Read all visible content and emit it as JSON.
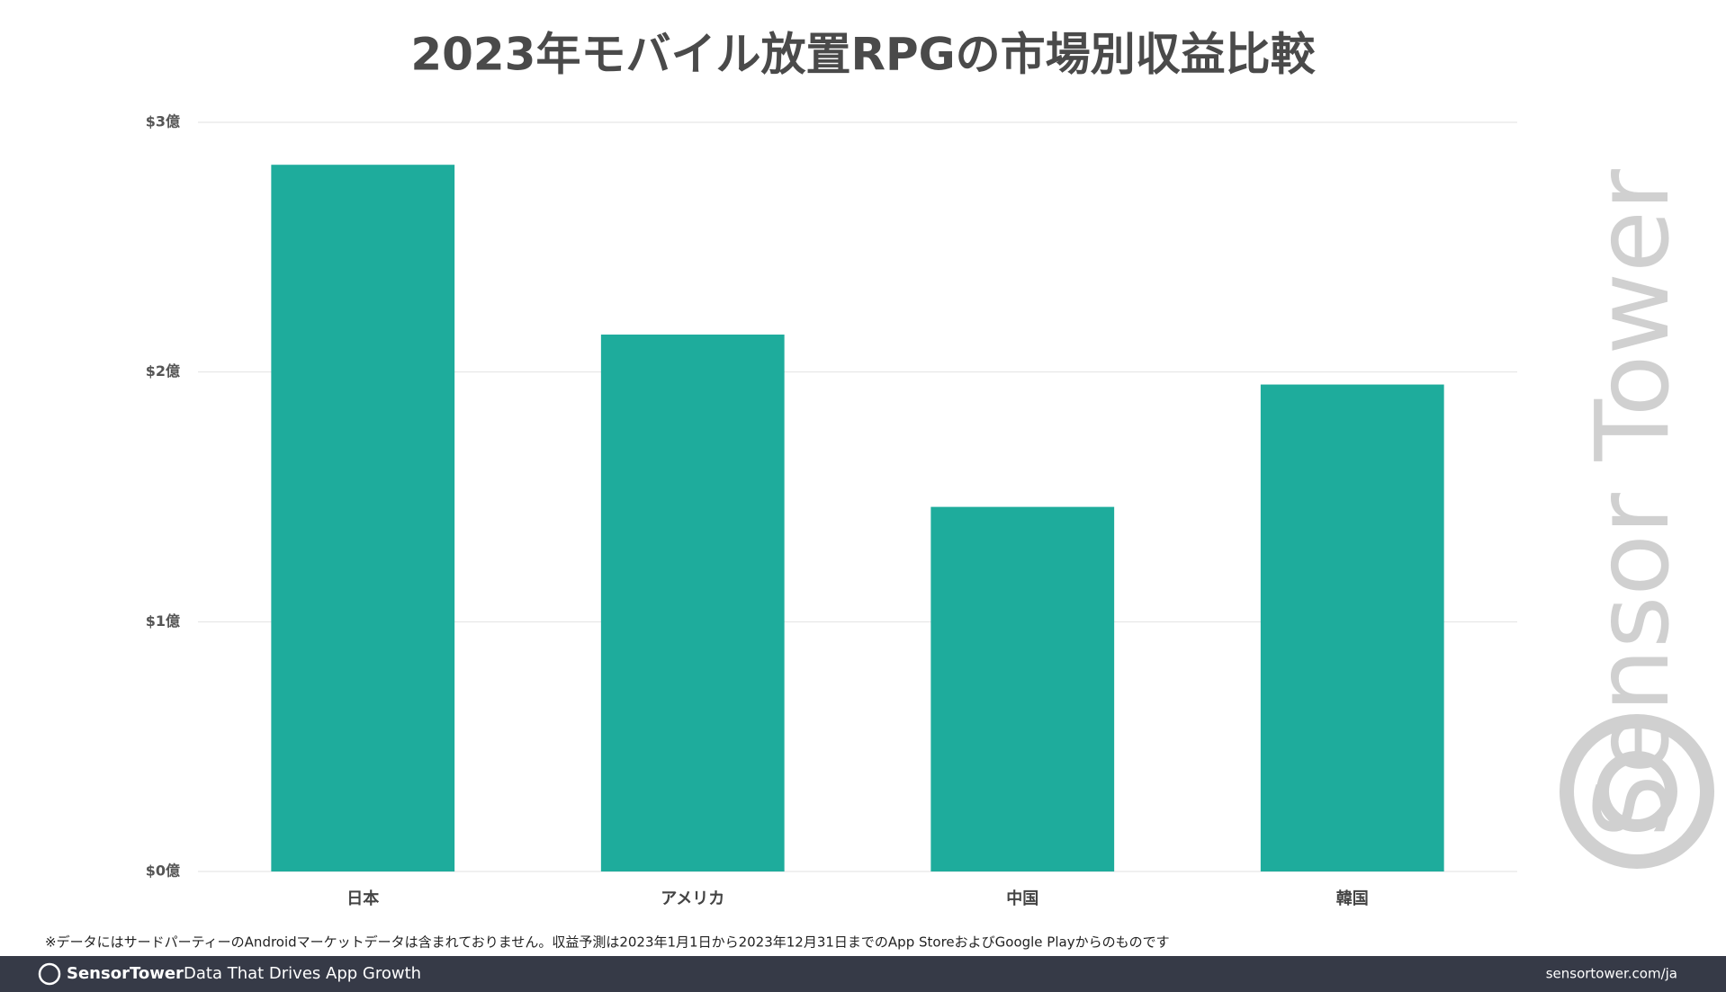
{
  "chart_data": {
    "type": "bar",
    "title": "2023年モバイル放置RPGの市場別収益比較",
    "categories": [
      "日本",
      "アメリカ",
      "中国",
      "韓国"
    ],
    "values": [
      2.83,
      2.15,
      1.46,
      1.95
    ],
    "color": "#1eac9c",
    "ylim": [
      0,
      3
    ],
    "yticks": [
      {
        "value": 0,
        "label": "$0億"
      },
      {
        "value": 1,
        "label": "$1億"
      },
      {
        "value": 2,
        "label": "$2億"
      },
      {
        "value": 3,
        "label": "$3億"
      }
    ],
    "grid": true,
    "note": "※データにはサードパーティーのAndroidマーケットデータは含まれておりません。収益予測は2023年1月1日から2023年12月31日までのApp StoreおよびGoogle Playからのものです",
    "watermark": "Sensor Tower",
    "footer": {
      "brand": "SensorTower",
      "tagline": "Data That Drives App Growth",
      "url": "sensortower.com/ja"
    }
  }
}
